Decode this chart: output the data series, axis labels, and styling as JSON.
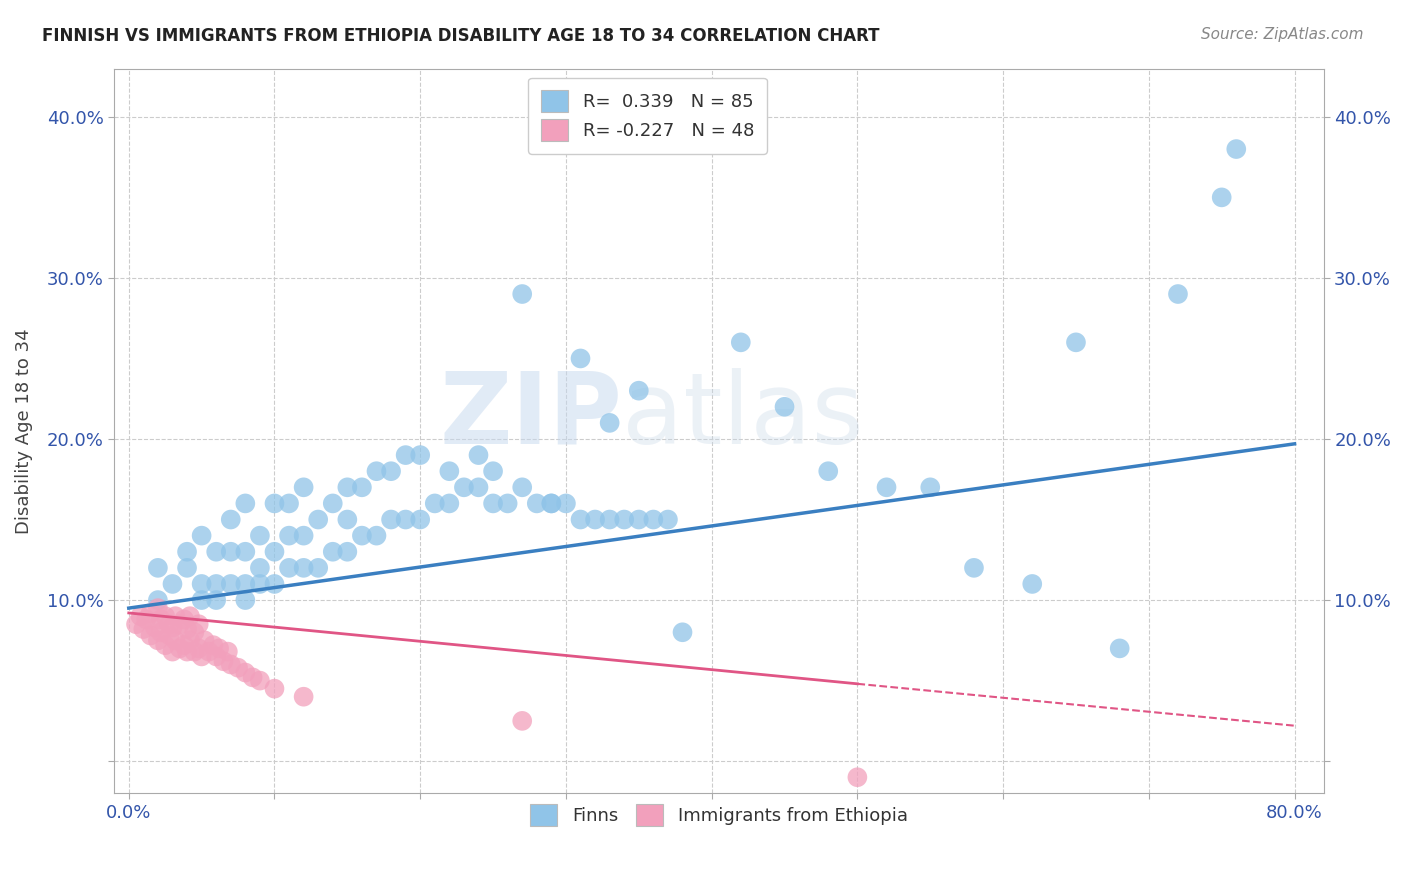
{
  "title": "FINNISH VS IMMIGRANTS FROM ETHIOPIA DISABILITY AGE 18 TO 34 CORRELATION CHART",
  "source": "Source: ZipAtlas.com",
  "ylabel": "Disability Age 18 to 34",
  "xlim": [
    -0.01,
    0.82
  ],
  "ylim": [
    -0.02,
    0.43
  ],
  "xticks": [
    0.0,
    0.1,
    0.2,
    0.3,
    0.4,
    0.5,
    0.6,
    0.7,
    0.8
  ],
  "yticks": [
    0.0,
    0.1,
    0.2,
    0.3,
    0.4
  ],
  "r_finns": 0.339,
  "n_finns": 85,
  "r_ethiopia": -0.227,
  "n_ethiopia": 48,
  "finns_color": "#90C4E8",
  "ethiopia_color": "#F2A0BC",
  "finns_line_color": "#3A7FC1",
  "ethiopia_line_color": "#E05585",
  "background_color": "#FFFFFF",
  "grid_color": "#CCCCCC",
  "watermark_zip": "ZIP",
  "watermark_atlas": "atlas",
  "finns_trend_x0": 0.0,
  "finns_trend_y0": 0.095,
  "finns_trend_x1": 0.8,
  "finns_trend_y1": 0.197,
  "eth_trend_x0": 0.0,
  "eth_trend_y0": 0.092,
  "eth_trend_x1": 0.5,
  "eth_trend_y1": 0.048,
  "eth_trend_dash_x0": 0.5,
  "eth_trend_dash_y0": 0.048,
  "eth_trend_dash_x1": 0.8,
  "eth_trend_dash_y1": 0.022,
  "finns_x": [
    0.02,
    0.02,
    0.03,
    0.04,
    0.04,
    0.05,
    0.05,
    0.05,
    0.06,
    0.06,
    0.06,
    0.07,
    0.07,
    0.07,
    0.08,
    0.08,
    0.08,
    0.08,
    0.09,
    0.09,
    0.09,
    0.1,
    0.1,
    0.1,
    0.11,
    0.11,
    0.11,
    0.12,
    0.12,
    0.12,
    0.13,
    0.13,
    0.14,
    0.14,
    0.15,
    0.15,
    0.15,
    0.16,
    0.16,
    0.17,
    0.17,
    0.18,
    0.18,
    0.19,
    0.19,
    0.2,
    0.2,
    0.21,
    0.22,
    0.22,
    0.23,
    0.24,
    0.24,
    0.25,
    0.25,
    0.26,
    0.27,
    0.28,
    0.29,
    0.3,
    0.31,
    0.32,
    0.33,
    0.34,
    0.35,
    0.36,
    0.37,
    0.27,
    0.29,
    0.31,
    0.33,
    0.35,
    0.38,
    0.42,
    0.45,
    0.48,
    0.52,
    0.55,
    0.58,
    0.62,
    0.65,
    0.68,
    0.72,
    0.75,
    0.76
  ],
  "finns_y": [
    0.1,
    0.12,
    0.11,
    0.12,
    0.13,
    0.1,
    0.11,
    0.14,
    0.1,
    0.11,
    0.13,
    0.11,
    0.13,
    0.15,
    0.1,
    0.11,
    0.13,
    0.16,
    0.11,
    0.12,
    0.14,
    0.11,
    0.13,
    0.16,
    0.12,
    0.14,
    0.16,
    0.12,
    0.14,
    0.17,
    0.12,
    0.15,
    0.13,
    0.16,
    0.13,
    0.15,
    0.17,
    0.14,
    0.17,
    0.14,
    0.18,
    0.15,
    0.18,
    0.15,
    0.19,
    0.15,
    0.19,
    0.16,
    0.16,
    0.18,
    0.17,
    0.17,
    0.19,
    0.16,
    0.18,
    0.16,
    0.17,
    0.16,
    0.16,
    0.16,
    0.15,
    0.15,
    0.15,
    0.15,
    0.15,
    0.15,
    0.15,
    0.29,
    0.16,
    0.25,
    0.21,
    0.23,
    0.08,
    0.26,
    0.22,
    0.18,
    0.17,
    0.17,
    0.12,
    0.11,
    0.26,
    0.07,
    0.29,
    0.35,
    0.38
  ],
  "ethiopia_x": [
    0.005,
    0.008,
    0.01,
    0.012,
    0.015,
    0.015,
    0.018,
    0.02,
    0.02,
    0.022,
    0.022,
    0.025,
    0.025,
    0.028,
    0.028,
    0.03,
    0.03,
    0.032,
    0.032,
    0.035,
    0.035,
    0.038,
    0.038,
    0.04,
    0.04,
    0.042,
    0.042,
    0.045,
    0.045,
    0.048,
    0.048,
    0.05,
    0.052,
    0.055,
    0.058,
    0.06,
    0.062,
    0.065,
    0.068,
    0.07,
    0.075,
    0.08,
    0.085,
    0.09,
    0.1,
    0.12,
    0.27,
    0.5
  ],
  "ethiopia_y": [
    0.085,
    0.09,
    0.082,
    0.088,
    0.078,
    0.092,
    0.083,
    0.075,
    0.095,
    0.08,
    0.088,
    0.072,
    0.09,
    0.078,
    0.085,
    0.068,
    0.083,
    0.075,
    0.09,
    0.07,
    0.085,
    0.072,
    0.088,
    0.068,
    0.082,
    0.075,
    0.09,
    0.068,
    0.08,
    0.07,
    0.085,
    0.065,
    0.075,
    0.068,
    0.072,
    0.065,
    0.07,
    0.062,
    0.068,
    0.06,
    0.058,
    0.055,
    0.052,
    0.05,
    0.045,
    0.04,
    0.025,
    -0.01
  ]
}
